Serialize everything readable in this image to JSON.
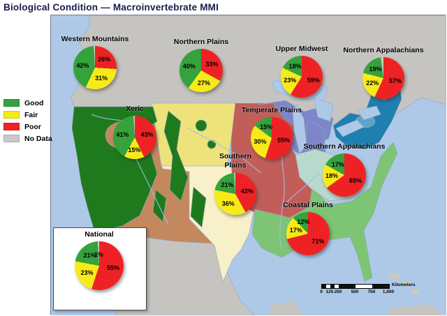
{
  "title": "Biological Condition — Macroinvertebrate MMI",
  "legend": {
    "items": [
      {
        "label": "Good",
        "color": "#35a23c"
      },
      {
        "label": "Fair",
        "color": "#f7ea18"
      },
      {
        "label": "Poor",
        "color": "#ee2224"
      },
      {
        "label": "No Data",
        "color": "#c9c9c9"
      }
    ]
  },
  "chart_data": {
    "type": "pie",
    "title": "Biological Condition — Macroinvertebrate MMI",
    "legend": [
      "Good",
      "Fair",
      "Poor",
      "No Data"
    ],
    "slice_order": [
      "Poor",
      "Fair",
      "Good",
      "No Data"
    ],
    "colors": {
      "Good": "#35a23c",
      "Fair": "#f7ea18",
      "Poor": "#ee2224",
      "No Data": "#c9c9c9"
    },
    "unit": "%",
    "pies": [
      {
        "name": "Western Mountains",
        "values": {
          "Good": 42,
          "Fair": 31,
          "Poor": 26
        }
      },
      {
        "name": "Northern Plains",
        "values": {
          "Good": 40,
          "Fair": 27,
          "Poor": 33
        }
      },
      {
        "name": "Upper Midwest",
        "values": {
          "Good": 18,
          "Fair": 23,
          "Poor": 59
        }
      },
      {
        "name": "Northern Appalachians",
        "values": {
          "Good": 19,
          "Fair": 22,
          "Poor": 57
        }
      },
      {
        "name": "Xeric",
        "values": {
          "Good": 41,
          "Fair": 15,
          "Poor": 43
        }
      },
      {
        "name": "Temperate Plains",
        "values": {
          "Good": 15,
          "Fair": 30,
          "Poor": 55
        }
      },
      {
        "name": "Southern Appalachians",
        "values": {
          "Good": 17,
          "Fair": 18,
          "Poor": 65
        }
      },
      {
        "name": "Southern Plains",
        "values": {
          "Good": 21,
          "Fair": 36,
          "Poor": 42
        }
      },
      {
        "name": "Coastal Plains",
        "values": {
          "Good": 12,
          "Fair": 17,
          "Poor": 71
        }
      },
      {
        "name": "National",
        "values": {
          "Good": 21,
          "Fair": 23,
          "Poor": 55,
          "No Data": 1
        }
      }
    ]
  },
  "map": {
    "ocean_color": "#aec9e8",
    "no_data_color": "#c6c4c1",
    "island_color": "#d9c9a6",
    "river_color": "#9cc3e6",
    "regions": [
      {
        "name": "Western Mountains",
        "color": "#1f7a1e"
      },
      {
        "name": "Xeric",
        "color": "#c4885f"
      },
      {
        "name": "Northern Plains",
        "color": "#eee27b"
      },
      {
        "name": "Southern Plains",
        "color": "#f7f0c8"
      },
      {
        "name": "Temperate Plains",
        "color": "#c25e59"
      },
      {
        "name": "Upper Midwest",
        "color": "#7c86c9"
      },
      {
        "name": "Northern Appalachians",
        "color": "#1f7fae"
      },
      {
        "name": "Northern Appalachians highlands",
        "color": "#5aa6c6"
      },
      {
        "name": "Southern Appalachians",
        "color": "#bad9cd"
      },
      {
        "name": "Coastal Plains",
        "color": "#7dc474"
      }
    ]
  },
  "scalebar": {
    "tick_labels": [
      "0",
      "125",
      "250",
      "500",
      "750",
      "1,000"
    ],
    "unit_label": "Kilometers"
  }
}
